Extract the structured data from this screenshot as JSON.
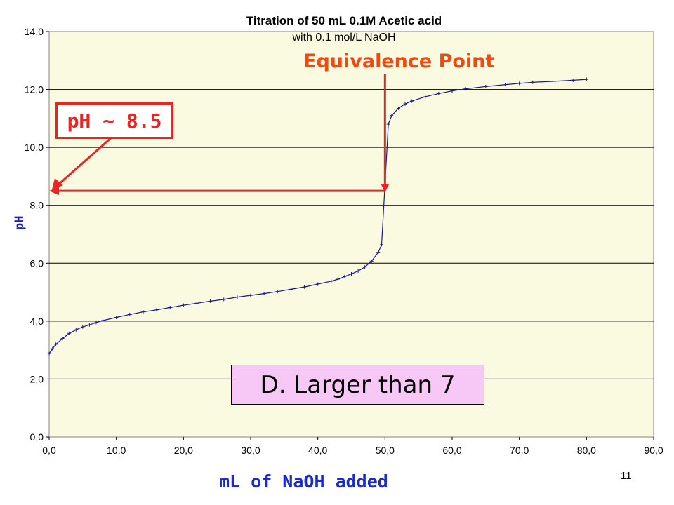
{
  "slide_number": "11",
  "annotations": {
    "equivalence_label": "Equivalence Point",
    "ph_label": "pH ~ 8.5",
    "answer_label": "D.  Larger than 7",
    "arrow_color": "#ee2222",
    "equivalence_color": "#ee4b14"
  },
  "colors": {
    "plot_background": "#fafae0",
    "series": "#1a1a8a",
    "axis_label": "#1a2ad0",
    "answer_box": "#f7c8f5"
  },
  "chart_data": {
    "type": "line",
    "title": "Titration of 50 mL 0.1M Acetic acid",
    "subtitle": "with 0.1 mol/L NaOH",
    "xlabel": "mL of NaOH added",
    "ylabel": "pH",
    "xlim": [
      0,
      90
    ],
    "ylim": [
      0,
      14
    ],
    "grid": "horizontal",
    "x_ticks": [
      "0,0",
      "10,0",
      "20,0",
      "30,0",
      "40,0",
      "50,0",
      "60,0",
      "70,0",
      "80,0",
      "90,0"
    ],
    "y_ticks": [
      "0,0",
      "2,0",
      "4,0",
      "6,0",
      "8,0",
      "10,0",
      "12,0",
      "14,0"
    ],
    "series": [
      {
        "marker": "plus",
        "x": [
          0,
          0.5,
          1,
          2,
          3,
          4,
          5,
          6,
          7,
          8,
          10,
          12,
          14,
          16,
          18,
          20,
          22,
          24,
          26,
          28,
          30,
          32,
          34,
          36,
          38,
          40,
          42,
          43,
          44,
          45,
          46,
          47,
          48,
          49,
          49.5,
          50,
          50.5,
          51,
          52,
          53,
          54,
          56,
          58,
          60,
          62,
          65,
          68,
          70,
          72,
          75,
          78,
          80
        ],
        "y": [
          2.88,
          3.05,
          3.2,
          3.4,
          3.58,
          3.7,
          3.8,
          3.87,
          3.95,
          4.02,
          4.13,
          4.23,
          4.32,
          4.39,
          4.47,
          4.55,
          4.62,
          4.69,
          4.75,
          4.83,
          4.89,
          4.95,
          5.02,
          5.1,
          5.18,
          5.28,
          5.38,
          5.45,
          5.54,
          5.63,
          5.73,
          5.87,
          6.07,
          6.38,
          6.64,
          8.7,
          10.8,
          11.1,
          11.35,
          11.5,
          11.6,
          11.75,
          11.86,
          11.95,
          12.02,
          12.1,
          12.17,
          12.21,
          12.25,
          12.28,
          12.32,
          12.35
        ]
      }
    ],
    "reference_point": {
      "x": 50,
      "y": 8.5
    }
  }
}
